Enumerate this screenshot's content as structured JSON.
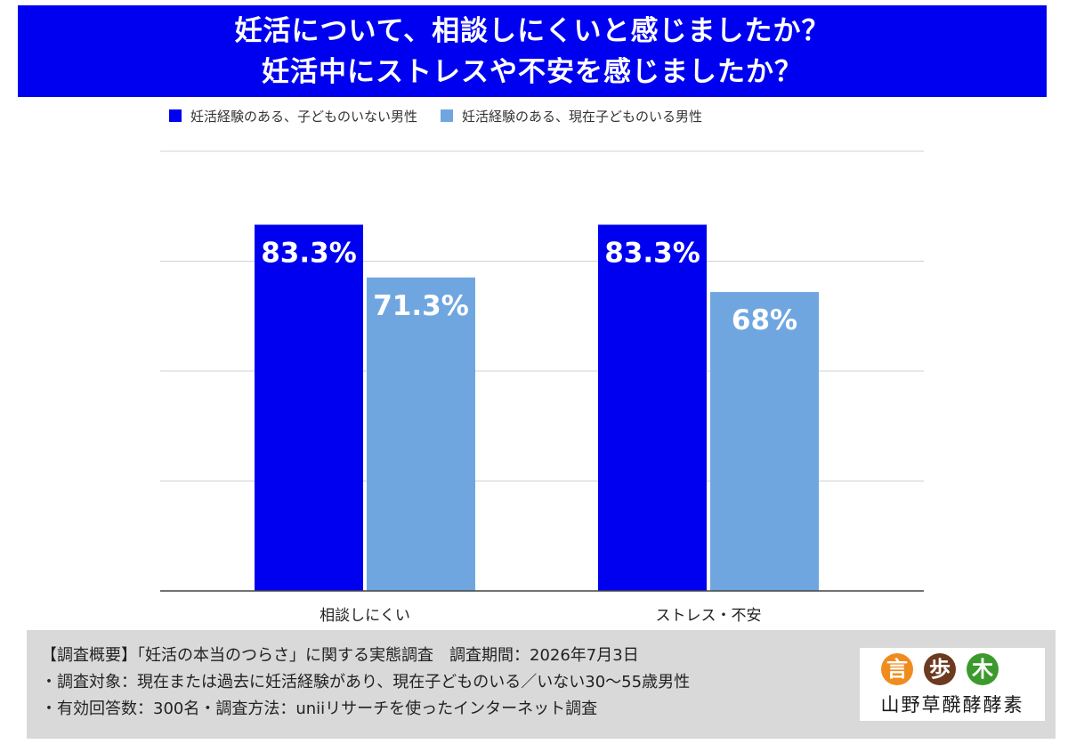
{
  "title": {
    "line1": "妊活について、相談しにくいと感じましたか？",
    "line2": "妊活中にストレスや不安を感じましたか？"
  },
  "colors": {
    "banner": "#0000f0",
    "series1": "#0000f0",
    "series2": "#70a6e0",
    "grid": "#d0d0d8",
    "logo_orange": "#f08c1e",
    "logo_brown": "#6b3a1f",
    "logo_green": "#3c9a2d"
  },
  "chart_data": {
    "type": "bar",
    "title": "",
    "xlabel": "",
    "ylabel": "",
    "categories": [
      "相談しにくい",
      "ストレス・不安"
    ],
    "series": [
      {
        "name": "妊活経験のある、子どものいない男性",
        "values": [
          83.3,
          83.3
        ],
        "labels": [
          "83.3%",
          "83.3%"
        ]
      },
      {
        "name": "妊活経験のある、現在子どものいる男性",
        "values": [
          71.3,
          68
        ],
        "labels": [
          "71.3%",
          "68%"
        ]
      }
    ],
    "ylim": [
      0,
      100
    ],
    "grid": true,
    "legend": "top-left"
  },
  "footer": {
    "line1": "【調査概要】「妊活の本当のつらさ」に関する実態調査　調査期間：2026年7月3日",
    "line2": "・調査対象：現在または過去に妊活経験があり、現在子どものいる／いない30〜55歳男性",
    "line3": "・有効回答数：300名・調査方法：uniiリサーチを使ったインターネット調査"
  },
  "logo": {
    "chars": [
      "言",
      "歩",
      "木"
    ],
    "text": "山野草醗酵酵素"
  }
}
